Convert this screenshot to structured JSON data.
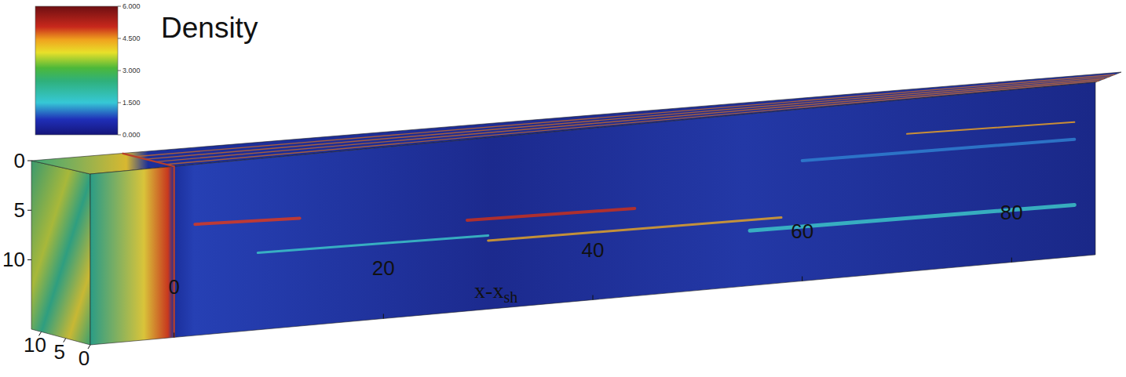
{
  "chart_data": {
    "type": "volume",
    "title": "Density",
    "x_label": "x-x",
    "x_label_sub": "sh",
    "xlim": [
      -8,
      88
    ],
    "xticks": [
      0,
      20,
      40,
      60,
      80
    ],
    "ylim": [
      0,
      17
    ],
    "yticks": [
      0,
      5,
      10
    ],
    "zlim": [
      0,
      12
    ],
    "zticks": [
      10,
      5,
      0
    ],
    "shock_x": 0,
    "colorbar_range": [
      0,
      6
    ],
    "colorbar_ticks": [
      {
        "value": 6,
        "label": "6.000"
      },
      {
        "value": 4.5,
        "label": "4.500"
      },
      {
        "value": 3,
        "label": "3.000"
      },
      {
        "value": 1.5,
        "label": "1.500"
      },
      {
        "value": 0,
        "label": "0.000"
      }
    ]
  }
}
